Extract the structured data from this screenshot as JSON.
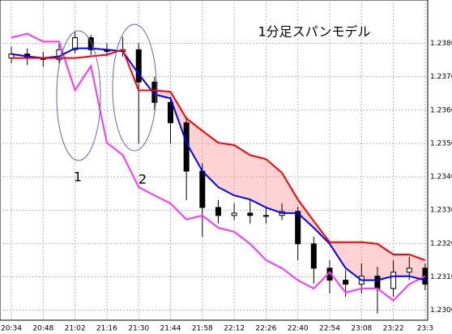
{
  "chart_data": {
    "type": "candlestick",
    "title": "1分足スパンモデル",
    "annotations": [
      "1",
      "2"
    ],
    "categories": [
      "20:34",
      null,
      "20:48",
      null,
      "21:02",
      null,
      "21:16",
      null,
      "21:30",
      null,
      "21:44",
      null,
      "21:58",
      null,
      "22:12",
      null,
      "22:26",
      null,
      "22:40",
      null,
      "22:54",
      null,
      "23:08",
      null,
      "23:22",
      null,
      "23:3"
    ],
    "open": [
      1.23756,
      1.23768,
      1.23756,
      1.23752,
      1.23781,
      1.23817,
      1.23781,
      1.23776,
      1.23781,
      1.23684,
      1.23623,
      1.23562,
      1.23417,
      1.23308,
      1.23284,
      1.23291,
      1.23284,
      1.23284,
      1.23296,
      1.23199,
      1.23126,
      1.2309,
      1.23078,
      1.23102,
      1.23065,
      1.23114,
      1.23126
    ],
    "high": [
      1.2379,
      1.23785,
      1.23775,
      1.238,
      1.23835,
      1.23825,
      1.238,
      1.2382,
      1.238,
      1.237,
      1.2364,
      1.2358,
      1.2344,
      1.2333,
      1.2332,
      1.2333,
      1.2331,
      1.2332,
      1.2331,
      1.2322,
      1.2315,
      1.2312,
      1.2314,
      1.2313,
      1.2315,
      1.2316,
      1.2314
    ],
    "low": [
      1.2374,
      1.23735,
      1.2373,
      1.2374,
      1.2377,
      1.23765,
      1.2376,
      1.2376,
      1.235,
      1.236,
      1.235,
      1.2333,
      1.2322,
      1.2326,
      1.2327,
      1.2326,
      1.2326,
      1.2327,
      1.2315,
      1.2308,
      1.2305,
      1.2304,
      1.2305,
      1.2299,
      1.2304,
      1.2309,
      1.2306
    ],
    "close": [
      1.23768,
      1.23756,
      1.23752,
      1.23781,
      1.23817,
      1.23781,
      1.23776,
      1.23781,
      1.23684,
      1.23623,
      1.23562,
      1.23417,
      1.23308,
      1.23284,
      1.23291,
      1.23284,
      1.23284,
      1.23296,
      1.23199,
      1.23126,
      1.2309,
      1.23078,
      1.23102,
      1.23065,
      1.23114,
      1.23126,
      1.23078
    ],
    "series": [
      {
        "color": "#ff0000",
        "values": [
          1.23756,
          1.23756,
          1.23756,
          1.23756,
          1.23756,
          1.23761,
          1.23766,
          1.23781,
          1.23659,
          1.23659,
          1.23655,
          1.23575,
          1.23538,
          1.23502,
          1.23495,
          1.23465,
          1.23453,
          1.23412,
          1.23332,
          1.23267,
          1.23204,
          1.23204,
          1.23204,
          1.23199,
          1.23167,
          1.23167,
          1.2315
        ]
      },
      {
        "color": "#0000ff",
        "values": [
          1.23768,
          1.23761,
          1.23756,
          1.23761,
          1.23785,
          1.23785,
          1.23781,
          1.23776,
          1.23708,
          1.23647,
          1.23635,
          1.23502,
          1.23417,
          1.23369,
          1.23344,
          1.23332,
          1.23308,
          1.23291,
          1.23291,
          1.23247,
          1.23199,
          1.23126,
          1.2309,
          1.2309,
          1.23102,
          1.23102,
          1.2309
        ]
      },
      {
        "color": "#ff33ff",
        "values": [
          1.23817,
          1.23829,
          1.23805,
          1.23805,
          1.23659,
          1.23732,
          1.23502,
          1.23465,
          1.23369,
          1.23344,
          1.2332,
          1.23272,
          1.23284,
          1.23247,
          1.23235,
          1.23199,
          1.2315,
          1.23126,
          1.2309,
          1.23065,
          1.23114,
          1.23053,
          1.23065,
          1.23065,
          1.23029,
          1.23078,
          1.23102
        ]
      }
    ],
    "cloud_color": "#ff8080",
    "up_color": "#ffffff",
    "down_color": "#000000",
    "ylim": [
      1.2297,
      1.2393
    ],
    "yticks": [
      {
        "value": 1.238,
        "label": "1.23800"
      },
      {
        "value": 1.237,
        "label": "1.23700"
      },
      {
        "value": 1.236,
        "label": "1.23600"
      },
      {
        "value": 1.235,
        "label": "1.23500"
      },
      {
        "value": 1.234,
        "label": "1.23400"
      },
      {
        "value": 1.233,
        "label": "1.23300"
      },
      {
        "value": 1.232,
        "label": "1.23200"
      },
      {
        "value": 1.231,
        "label": "1.23100"
      },
      {
        "value": 1.23,
        "label": "1.23000"
      }
    ],
    "grid": true
  }
}
